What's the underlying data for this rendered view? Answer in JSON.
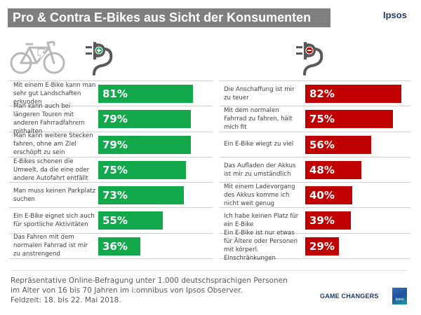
{
  "header": {
    "title": "Pro & Contra E-Bikes aus Sicht der Konsumenten",
    "brand": "Ipsos"
  },
  "icons": {
    "bike": "electric-bike-icon",
    "pro": "plug-plus-icon",
    "contra": "plug-minus-icon"
  },
  "colors": {
    "pro": "#12a84b",
    "contra": "#c00000",
    "title_bg": "#7f7f7f"
  },
  "chart_data": [
    {
      "type": "bar",
      "orientation": "horizontal",
      "title": "Pro",
      "categories": [
        "Mit einem E-Bike kann man sehr gut Landschaften erkunden",
        "Man kann auch bei längeren Touren mit anderen Fahrradfahrern mithalten",
        "Man kann weitere Stecken fahren, ohne am Ziel erschöpft zu sein",
        "E-Bikes schonen die Umwelt, da die eine oder andere Autofahrt entfällt",
        "Man muss keinen Parkplatz suchen",
        "Ein E-Bike eignet sich auch für sportliche Aktivitäten",
        "Das Fahren mit dem normalen Fahrrad ist mir zu anstrengend"
      ],
      "values": [
        81,
        79,
        79,
        75,
        73,
        55,
        36
      ],
      "labels": [
        "81%",
        "79%",
        "79%",
        "75%",
        "73%",
        "55%",
        "36%"
      ],
      "unit": "%",
      "xlim": [
        0,
        100
      ],
      "color": "#12a84b"
    },
    {
      "type": "bar",
      "orientation": "horizontal",
      "title": "Contra",
      "categories": [
        "Die Anschaffung ist mir zu teuer",
        "Mit dem normalen Fahrrad zu fahren, hält mich fit",
        "Ein E-Bike wiegt zu viel",
        "Das Aufladen der Akkus ist mir zu umständlich",
        "Mit einem Ladevorgang des Akkus komme  ich nicht weit genug",
        "Ich habe keinen Platz für ein E-Bike",
        "Ein E-Bike ist nur etwas für Ältere oder Personen mit körperl.  Einschränkungen"
      ],
      "values": [
        82,
        75,
        56,
        48,
        40,
        39,
        29
      ],
      "labels": [
        "82%",
        "75%",
        "56%",
        "48%",
        "40%",
        "39%",
        "29%"
      ],
      "unit": "%",
      "xlim": [
        0,
        100
      ],
      "color": "#c00000"
    }
  ],
  "footer": {
    "note_lines": [
      "Repräsentative  Online-Befragung  unter 1.000 deutschsprachigen  Personen",
      "im Alter von 16 bis 70 Jahren im i:omnibus von Ipsos Observer.",
      "Feldzeit: 18. bis 22. Mai 2018."
    ],
    "tagline": "GAME CHANGERS",
    "logo_text": "Ipsos"
  }
}
